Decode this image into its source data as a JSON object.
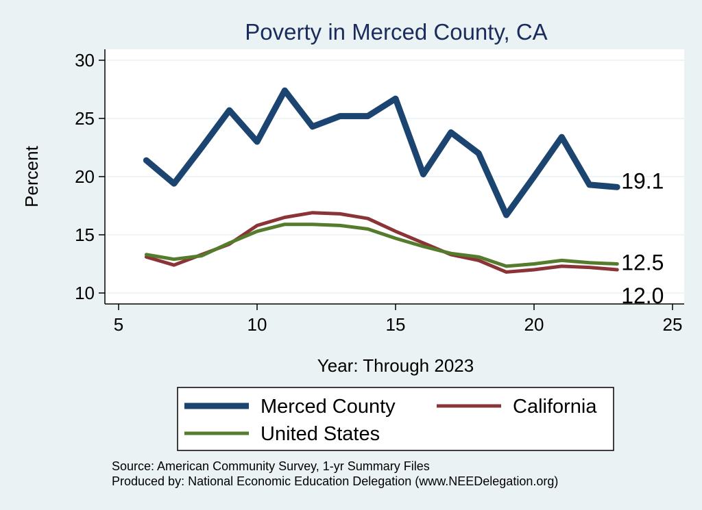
{
  "chart_data": {
    "type": "line",
    "title": "Poverty in Merced County, CA",
    "xlabel": "Year: Through 2023",
    "ylabel": "Percent",
    "xlim": [
      5,
      25
    ],
    "ylim": [
      10,
      30
    ],
    "xticks": [
      5,
      10,
      15,
      20,
      25
    ],
    "yticks": [
      10,
      15,
      20,
      25,
      30
    ],
    "grid": "horizontal",
    "legend_position": "bottom",
    "x": [
      6,
      7,
      8,
      9,
      10,
      11,
      12,
      13,
      14,
      15,
      16,
      17,
      18,
      19,
      20,
      21,
      22,
      23
    ],
    "series": [
      {
        "name": "Merced County",
        "color": "#1b4570",
        "values": [
          21.4,
          19.4,
          22.5,
          25.7,
          23.0,
          27.4,
          24.3,
          25.2,
          25.2,
          26.7,
          20.2,
          23.8,
          22.0,
          16.7,
          20.0,
          23.4,
          19.3,
          19.1
        ],
        "end_label": "19.1"
      },
      {
        "name": "California",
        "color": "#8b3438",
        "values": [
          13.1,
          12.4,
          13.3,
          14.2,
          15.8,
          16.5,
          16.9,
          16.8,
          16.4,
          15.3,
          14.3,
          13.3,
          12.8,
          11.8,
          12.0,
          12.3,
          12.2,
          12.0
        ],
        "end_label": "12.0"
      },
      {
        "name": "United States",
        "color": "#557b2c",
        "values": [
          13.3,
          12.9,
          13.2,
          14.3,
          15.3,
          15.9,
          15.9,
          15.8,
          15.5,
          14.7,
          14.0,
          13.4,
          13.1,
          12.3,
          12.5,
          12.8,
          12.6,
          12.5
        ],
        "end_label": "12.5"
      }
    ]
  },
  "notes": {
    "source": "Source: American Community Survey, 1-yr Summary Files",
    "produced": "Produced by: National Economic Education Delegation (www.NEEDelegation.org)"
  }
}
